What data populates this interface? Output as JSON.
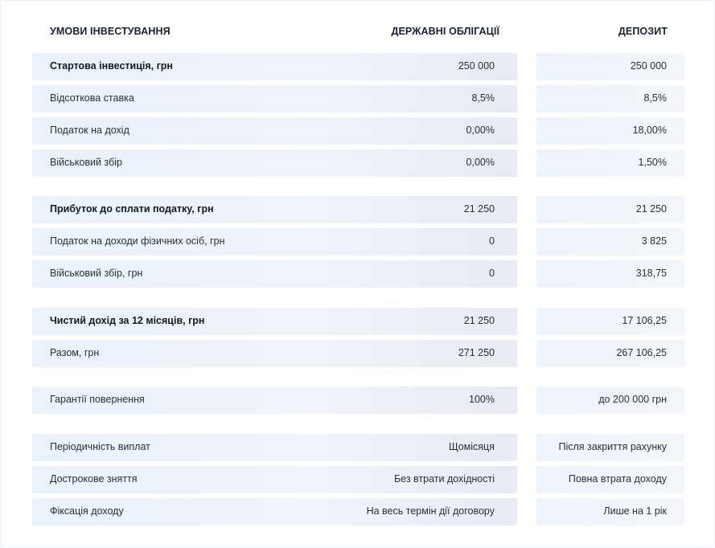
{
  "header": {
    "conditions": "УМОВИ ІНВЕСТУВАННЯ",
    "bonds": "ДЕРЖАВНІ ОБЛІГАЦІЇ",
    "deposit": "ДЕПОЗИТ"
  },
  "rows": [
    {
      "label": "Стартова інвестиція, грн",
      "bold": true,
      "bonds": "250 000",
      "deposit": "250 000"
    },
    {
      "label": "Відсоткова ставка",
      "bold": false,
      "bonds": "8,5%",
      "deposit": "8,5%"
    },
    {
      "label": "Податок на дохід",
      "bold": false,
      "bonds": "0,00%",
      "deposit": "18,00%"
    },
    {
      "label": "Військовий збір",
      "bold": false,
      "bonds": "0,00%",
      "deposit": "1,50%"
    },
    {
      "label": "Прибуток до сплати податку, грн",
      "bold": true,
      "bonds": "21 250",
      "deposit": "21 250"
    },
    {
      "label": "Податок на доходи фізичних осіб, грн",
      "bold": false,
      "bonds": "0",
      "deposit": "3 825"
    },
    {
      "label": "Військовий збір, грн",
      "bold": false,
      "bonds": "0",
      "deposit": "318,75"
    },
    {
      "label": "Чистий дохід за 12 місяців, грн",
      "bold": true,
      "bonds": "21 250",
      "deposit": "17 106,25"
    },
    {
      "label": "Разом, грн",
      "bold": false,
      "bonds": "271 250",
      "deposit": "267 106,25"
    },
    {
      "label": "Гарантії повернення",
      "bold": false,
      "bonds": "100%",
      "deposit": "до 200 000 грн"
    },
    {
      "label": "Періодичність виплат",
      "bold": false,
      "bonds": "Щомісяця",
      "deposit": "Після закриття рахунку"
    },
    {
      "label": "Дострокове зняття",
      "bold": false,
      "bonds": "Без втрати дохідності",
      "deposit": "Повна втрата доходу"
    },
    {
      "label": "Фіксація доходу",
      "bold": false,
      "bonds": "На весь термін дії договору",
      "deposit": "Лише на 1 рік"
    }
  ]
}
